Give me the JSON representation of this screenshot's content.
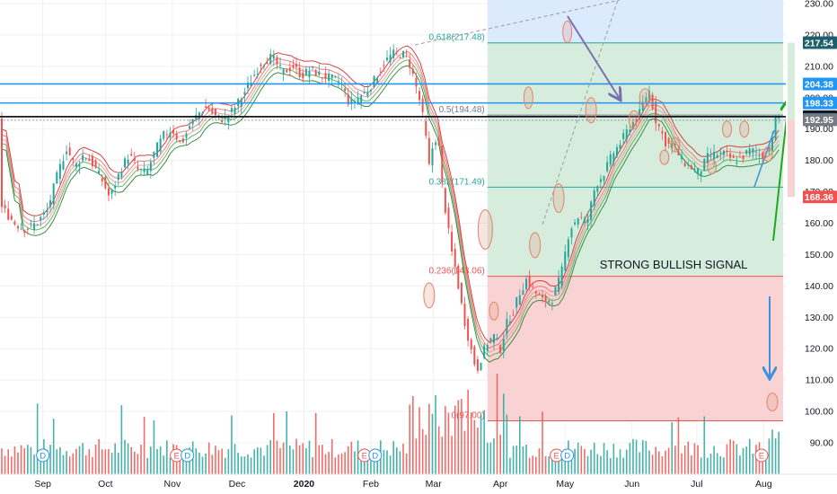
{
  "chart_data": {
    "type": "candlestick",
    "title": "",
    "xlabel": "",
    "ylabel": "",
    "ylim": [
      80,
      230
    ],
    "y_ticks": [
      90,
      100,
      110,
      120,
      130,
      140,
      150,
      160,
      170,
      180,
      190,
      200,
      210,
      220,
      230
    ],
    "y_tick_labels": [
      "90.00",
      "100.00",
      "110.00",
      "120.00",
      "130.00",
      "140.00",
      "150.00",
      "160.00",
      "170.00",
      "180.00",
      "190.00",
      "200.00",
      "210.00",
      "220.00",
      "230.00"
    ],
    "x_months": [
      {
        "label": "Sep",
        "t": 19
      },
      {
        "label": "Oct",
        "t": 48
      },
      {
        "label": "Nov",
        "t": 79
      },
      {
        "label": "Dec",
        "t": 109
      },
      {
        "label": "2020",
        "t": 140
      },
      {
        "label": "Feb",
        "t": 171
      },
      {
        "label": "Mar",
        "t": 200
      },
      {
        "label": "Apr",
        "t": 231
      },
      {
        "label": "May",
        "t": 261
      },
      {
        "label": "Jun",
        "t": 292
      },
      {
        "label": "Jul",
        "t": 322
      },
      {
        "label": "Aug",
        "t": 353
      }
    ],
    "t_range": [
      0,
      362
    ],
    "price_path": [
      [
        0,
        165
      ],
      [
        6,
        160
      ],
      [
        11,
        158
      ],
      [
        16,
        160
      ],
      [
        21,
        164
      ],
      [
        26,
        176
      ],
      [
        30,
        184
      ],
      [
        34,
        178
      ],
      [
        38,
        182
      ],
      [
        42,
        179
      ],
      [
        47,
        173
      ],
      [
        50,
        168
      ],
      [
        55,
        177
      ],
      [
        59,
        182
      ],
      [
        63,
        177
      ],
      [
        67,
        176
      ],
      [
        71,
        183
      ],
      [
        75,
        188
      ],
      [
        79,
        190
      ],
      [
        83,
        185
      ],
      [
        87,
        191
      ],
      [
        91,
        195
      ],
      [
        95,
        197
      ],
      [
        99,
        194
      ],
      [
        103,
        193
      ],
      [
        107,
        196
      ],
      [
        111,
        200
      ],
      [
        115,
        205
      ],
      [
        120,
        211
      ],
      [
        125,
        213
      ],
      [
        130,
        208
      ],
      [
        135,
        210
      ],
      [
        139,
        207
      ],
      [
        143,
        209
      ],
      [
        148,
        207
      ],
      [
        153,
        206
      ],
      [
        157,
        205
      ],
      [
        161,
        198
      ],
      [
        165,
        200
      ],
      [
        169,
        202
      ],
      [
        173,
        206
      ],
      [
        177,
        211
      ],
      [
        181,
        214
      ],
      [
        185,
        214
      ],
      [
        188,
        213
      ],
      [
        191,
        206
      ],
      [
        194,
        198
      ],
      [
        196,
        190
      ],
      [
        198,
        178
      ],
      [
        200,
        186
      ],
      [
        202,
        188
      ],
      [
        204,
        172
      ],
      [
        206,
        162
      ],
      [
        208,
        152
      ],
      [
        210,
        146
      ],
      [
        212,
        138
      ],
      [
        214,
        130
      ],
      [
        216,
        124
      ],
      [
        218,
        118
      ],
      [
        220,
        113
      ],
      [
        222,
        117
      ],
      [
        225,
        122
      ],
      [
        228,
        124
      ],
      [
        231,
        120
      ],
      [
        234,
        128
      ],
      [
        237,
        132
      ],
      [
        240,
        138
      ],
      [
        243,
        142
      ],
      [
        247,
        138
      ],
      [
        251,
        135
      ],
      [
        255,
        136
      ],
      [
        259,
        143
      ],
      [
        263,
        158
      ],
      [
        267,
        162
      ],
      [
        271,
        160
      ],
      [
        275,
        172
      ],
      [
        279,
        176
      ],
      [
        283,
        182
      ],
      [
        287,
        186
      ],
      [
        291,
        191
      ],
      [
        295,
        194
      ],
      [
        298,
        200
      ],
      [
        300,
        202
      ],
      [
        303,
        193
      ],
      [
        305,
        190
      ],
      [
        308,
        185
      ],
      [
        311,
        185
      ],
      [
        315,
        180
      ],
      [
        319,
        178
      ],
      [
        323,
        176
      ],
      [
        327,
        181
      ],
      [
        331,
        182
      ],
      [
        335,
        182
      ],
      [
        339,
        180
      ],
      [
        343,
        181
      ],
      [
        346,
        183
      ],
      [
        349,
        183
      ],
      [
        352,
        181
      ],
      [
        355,
        183
      ],
      [
        357,
        188
      ],
      [
        359,
        194
      ],
      [
        361,
        194
      ]
    ],
    "price_lines": [
      {
        "value": 217.54,
        "label": "217.54",
        "color": "#1e5f6e"
      },
      {
        "value": 204.38,
        "label": "204.38",
        "color": "#2196f3"
      },
      {
        "value": 198.33,
        "label": "198.33",
        "color": "#2196f3"
      },
      {
        "value": 193.96,
        "label": "193.96",
        "color": "#131722"
      },
      {
        "value": 193.03,
        "label": "193.03",
        "color": "#26a69a"
      },
      {
        "value": 192.95,
        "label": "192.95",
        "color": "#787b86"
      },
      {
        "value": 168.36,
        "label": "168.36",
        "color": "#ef5350"
      }
    ],
    "fib_levels": [
      {
        "value": 217.48,
        "label": "0.618(217.48)",
        "color": "#26a69a"
      },
      {
        "value": 194.48,
        "label": "0.5(194.48)",
        "color": "#787b86"
      },
      {
        "value": 171.49,
        "label": "0.382(171.49)",
        "color": "#26a69a"
      },
      {
        "value": 143.06,
        "label": "0.236(143.06)",
        "color": "#ef5350"
      },
      {
        "value": 97.0,
        "label": "0(97.00)",
        "color": "#ef5350"
      }
    ],
    "fib_t_range": [
      225,
      362
    ],
    "annotations": [
      {
        "text": "STRONG BULLISH SIGNAL",
        "t": 277,
        "y": 147
      }
    ],
    "event_markers": [
      {
        "label": "D",
        "t": 19,
        "type": "dividend"
      },
      {
        "label": "E",
        "t": 81,
        "type": "earnings"
      },
      {
        "label": "D",
        "t": 86,
        "type": "dividend"
      },
      {
        "label": "E",
        "t": 168,
        "type": "earnings"
      },
      {
        "label": "D",
        "t": 173,
        "type": "dividend"
      },
      {
        "label": "E",
        "t": 257,
        "type": "earnings"
      },
      {
        "label": "D",
        "t": 262,
        "type": "dividend"
      },
      {
        "label": "E",
        "t": 352,
        "type": "earnings"
      }
    ],
    "colors": {
      "up": "#26a69a",
      "down": "#ef5350",
      "green_zone": "#d6eddd",
      "red_zone": "#f9d3d3",
      "blue_zone": "#dbeafc",
      "grid": "#eef0f3",
      "axis_text": "#131722",
      "annotation_circle": "#e0846a",
      "arrow_purple": "#7b6fb0",
      "arrow_blue": "#3d8fe0",
      "arrow_green": "#1ea81e"
    }
  }
}
